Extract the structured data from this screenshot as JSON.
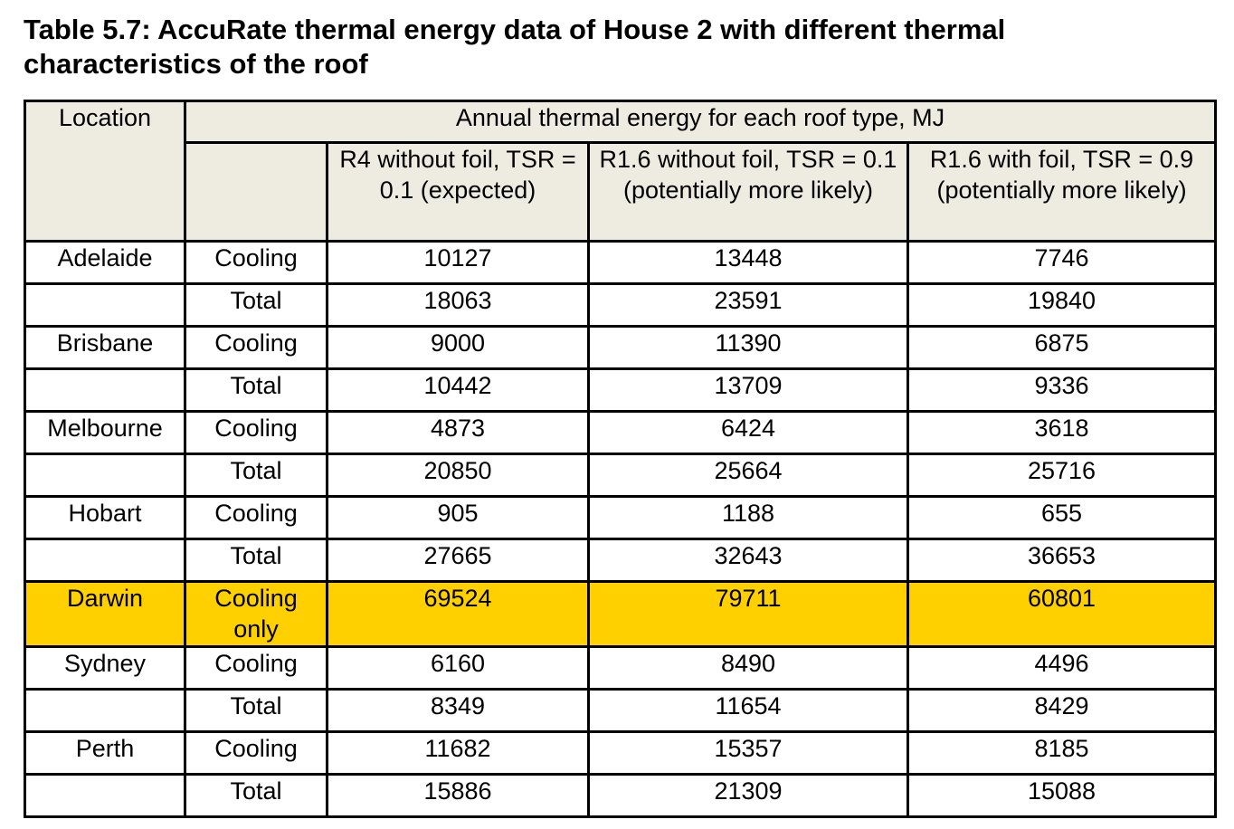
{
  "title": "Table 5.7: AccuRate thermal energy data of House 2 with different thermal characteristics of the roof",
  "table": {
    "location_header": "Location",
    "group_header": "Annual thermal energy for each roof type, MJ",
    "col_headers": [
      "R4 without foil, TSR = 0.1 (expected)",
      "R1.6 without foil, TSR = 0.1 (potentially more likely)",
      "R1.6 with foil, TSR = 0.9 (potentially more likely)"
    ],
    "rows": [
      {
        "location": "Adelaide",
        "type": "Cooling",
        "values": [
          "10127",
          "13448",
          "7746"
        ]
      },
      {
        "location": "",
        "type": "Total",
        "values": [
          "18063",
          "23591",
          "19840"
        ]
      },
      {
        "location": "Brisbane",
        "type": "Cooling",
        "values": [
          "9000",
          "11390",
          "6875"
        ]
      },
      {
        "location": "",
        "type": "Total",
        "values": [
          "10442",
          "13709",
          "9336"
        ]
      },
      {
        "location": "Melbourne",
        "type": "Cooling",
        "values": [
          "4873",
          "6424",
          "3618"
        ]
      },
      {
        "location": "",
        "type": "Total",
        "values": [
          "20850",
          "25664",
          "25716"
        ]
      },
      {
        "location": "Hobart",
        "type": "Cooling",
        "values": [
          "905",
          "1188",
          "655"
        ]
      },
      {
        "location": "",
        "type": "Total",
        "values": [
          "27665",
          "32643",
          "36653"
        ]
      },
      {
        "location": "Darwin",
        "type": "Cooling only",
        "values": [
          "69524",
          "79711",
          "60801"
        ]
      },
      {
        "location": "Sydney",
        "type": "Cooling",
        "values": [
          "6160",
          "8490",
          "4496"
        ]
      },
      {
        "location": "",
        "type": "Total",
        "values": [
          "8349",
          "11654",
          "8429"
        ]
      },
      {
        "location": "Perth",
        "type": "Cooling",
        "values": [
          "11682",
          "15357",
          "8185"
        ]
      },
      {
        "location": "",
        "type": "Total",
        "values": [
          "15886",
          "21309",
          "15088"
        ]
      }
    ],
    "highlight_color": "#ffd000",
    "header_color": "#eeece1"
  }
}
